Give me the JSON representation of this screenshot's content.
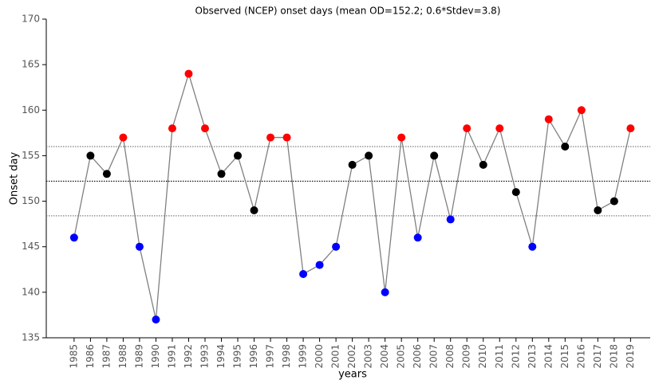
{
  "chart_data": {
    "type": "line",
    "title": "Observed (NCEP) onset days (mean OD=152.2; 0.6*Stdev=3.8)",
    "x_label": "years",
    "y_label": "Onset day",
    "x": [
      1985,
      1986,
      1987,
      1988,
      1989,
      1990,
      1991,
      1992,
      1993,
      1994,
      1995,
      1996,
      1997,
      1998,
      1999,
      2000,
      2001,
      2002,
      2003,
      2004,
      2005,
      2006,
      2007,
      2008,
      2009,
      2010,
      2011,
      2012,
      2013,
      2014,
      2015,
      2016,
      2017,
      2018,
      2019
    ],
    "series": [
      {
        "color": "#808080",
        "values": [
          146,
          155,
          153,
          157,
          145,
          137,
          158,
          164,
          158,
          153,
          155,
          149,
          157,
          157,
          142,
          143,
          145,
          154,
          155,
          140,
          157,
          146,
          155,
          148,
          158,
          154,
          158,
          151,
          145,
          159,
          156,
          160,
          149,
          150,
          158
        ],
        "point_colors": [
          "#0000ff",
          "#000000",
          "#000000",
          "#ff0000",
          "#0000ff",
          "#0000ff",
          "#ff0000",
          "#ff0000",
          "#ff0000",
          "#000000",
          "#000000",
          "#000000",
          "#ff0000",
          "#ff0000",
          "#0000ff",
          "#0000ff",
          "#0000ff",
          "#000000",
          "#000000",
          "#0000ff",
          "#ff0000",
          "#0000ff",
          "#000000",
          "#0000ff",
          "#ff0000",
          "#000000",
          "#ff0000",
          "#000000",
          "#0000ff",
          "#ff0000",
          "#000000",
          "#ff0000",
          "#000000",
          "#000000",
          "#ff0000"
        ]
      }
    ],
    "hlines": [
      {
        "value": 152.2,
        "color": "#000000"
      },
      {
        "value": 156.0,
        "color": "#808080"
      },
      {
        "value": 148.4,
        "color": "#808080"
      }
    ],
    "xlim": [
      1983.3,
      2020.2
    ],
    "xticks": [
      1985,
      1986,
      1987,
      1988,
      1989,
      1990,
      1991,
      1992,
      1993,
      1994,
      1995,
      1996,
      1997,
      1998,
      1999,
      2000,
      2001,
      2002,
      2003,
      2004,
      2005,
      2006,
      2007,
      2008,
      2009,
      2010,
      2011,
      2012,
      2013,
      2014,
      2015,
      2016,
      2017,
      2018,
      2019
    ],
    "ylim": [
      135,
      170
    ],
    "yticks": [
      135,
      140,
      145,
      150,
      155,
      160,
      165,
      170
    ]
  }
}
